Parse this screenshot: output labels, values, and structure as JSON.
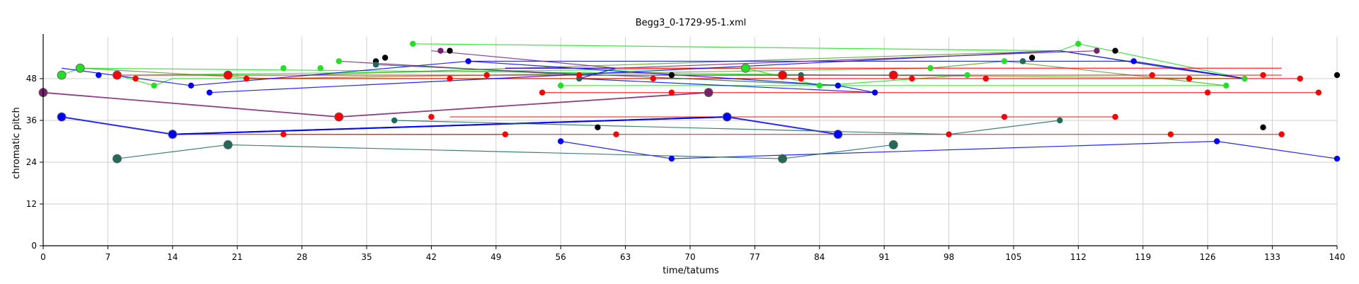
{
  "chart_data": {
    "type": "scatter",
    "title": "Begg3_0-1729-95-1.xml",
    "xlabel": "time/tatums",
    "ylabel": "chromatic pitch",
    "xlim": [
      0,
      140
    ],
    "ylim": [
      0,
      60
    ],
    "x_ticks": [
      0,
      7,
      14,
      21,
      28,
      35,
      42,
      49,
      56,
      63,
      70,
      77,
      84,
      91,
      98,
      105,
      112,
      119,
      126,
      133,
      140
    ],
    "y_ticks": [
      0,
      12,
      24,
      36,
      48
    ],
    "grid": true,
    "colors": {
      "bright_green": "#22e022",
      "olive_green": "#5aa02a",
      "dark_green": "#1f6b5a",
      "red": "#ff0000",
      "blue": "#0000ff",
      "purple": "#7a1f6e",
      "black": "#000000"
    },
    "series": [
      {
        "color": "bright_green",
        "line": false,
        "x": [
          4,
          8,
          12,
          26,
          30,
          32,
          40,
          56,
          76,
          84,
          96,
          100,
          104,
          112,
          128,
          130
        ],
        "y": [
          51,
          49,
          46,
          51,
          51,
          53,
          58,
          46,
          51,
          46,
          51,
          49,
          53,
          58,
          46,
          48
        ]
      },
      {
        "color": "black",
        "line": false,
        "x": [
          36,
          37,
          44,
          60,
          68,
          106,
          107,
          116,
          132,
          140
        ],
        "y": [
          53,
          54,
          56,
          34,
          49,
          53,
          54,
          56,
          34,
          49
        ]
      },
      {
        "color": "dark_green",
        "line": false,
        "x": [
          36,
          38,
          58,
          82,
          106,
          110
        ],
        "y": [
          52,
          36,
          48,
          49,
          53,
          36
        ]
      },
      {
        "color": "purple",
        "line": false,
        "x": [
          43,
          114
        ],
        "y": [
          56,
          56
        ]
      },
      {
        "color": "red",
        "line": false,
        "x": [
          10,
          22,
          26,
          42,
          44,
          48,
          50,
          54,
          58,
          62,
          66,
          68,
          82,
          94,
          98,
          102,
          116,
          120,
          122,
          124,
          126,
          132,
          134,
          136,
          138,
          104
        ],
        "y": [
          48,
          48,
          32,
          37,
          48,
          49,
          32,
          44,
          49,
          32,
          48,
          44,
          48,
          48,
          32,
          48,
          37,
          49,
          32,
          48,
          44,
          49,
          32,
          48,
          44,
          37
        ]
      },
      {
        "color": "blue",
        "line": false,
        "x": [
          6,
          16,
          18,
          46,
          56,
          68,
          86,
          90,
          118,
          127,
          140
        ],
        "y": [
          49,
          46,
          44,
          53,
          30,
          25,
          46,
          44,
          53,
          30,
          25
        ]
      }
    ],
    "lines": [
      {
        "color": "bright_green",
        "width": 1.2,
        "points": [
          [
            2,
            49
          ],
          [
            4,
            51
          ],
          [
            130,
            48
          ]
        ]
      },
      {
        "color": "bright_green",
        "width": 1.2,
        "points": [
          [
            10,
            49
          ],
          [
            76,
            51
          ],
          [
            84,
            46
          ],
          [
            100,
            49
          ]
        ]
      },
      {
        "color": "bright_green",
        "width": 1.2,
        "points": [
          [
            40,
            58
          ],
          [
            110,
            56
          ],
          [
            112,
            58
          ],
          [
            130,
            48
          ]
        ]
      },
      {
        "color": "bright_green",
        "width": 1.2,
        "points": [
          [
            56,
            46
          ],
          [
            128,
            46
          ]
        ]
      },
      {
        "color": "bright_green",
        "width": 1.2,
        "points": [
          [
            8,
            49
          ],
          [
            12,
            46
          ],
          [
            14,
            48
          ],
          [
            58,
            48
          ],
          [
            82,
            48
          ]
        ]
      },
      {
        "color": "olive_green",
        "width": 1.2,
        "points": [
          [
            4,
            51
          ],
          [
            24,
            48
          ],
          [
            96,
            51
          ],
          [
            104,
            53
          ],
          [
            128,
            46
          ]
        ]
      },
      {
        "color": "olive_green",
        "width": 1.2,
        "points": [
          [
            28,
            49
          ],
          [
            110,
            56
          ],
          [
            130,
            48
          ]
        ]
      },
      {
        "color": "red",
        "width": 1.2,
        "points": [
          [
            8,
            49
          ],
          [
            134,
            49
          ]
        ]
      },
      {
        "color": "red",
        "width": 1.2,
        "points": [
          [
            22,
            48
          ],
          [
            136,
            48
          ]
        ]
      },
      {
        "color": "red",
        "width": 1.2,
        "points": [
          [
            50,
            51
          ],
          [
            134,
            51
          ]
        ]
      },
      {
        "color": "red",
        "width": 1.2,
        "points": [
          [
            54,
            44
          ],
          [
            138,
            44
          ]
        ]
      },
      {
        "color": "red",
        "width": 1.2,
        "points": [
          [
            44,
            37
          ],
          [
            116,
            37
          ]
        ]
      },
      {
        "color": "red",
        "width": 1.2,
        "points": [
          [
            26,
            32
          ],
          [
            134,
            32
          ]
        ]
      },
      {
        "color": "red",
        "width": 1.2,
        "points": [
          [
            14,
            32
          ],
          [
            50,
            32
          ]
        ]
      },
      {
        "color": "blue",
        "width": 1.2,
        "points": [
          [
            2,
            51
          ],
          [
            16,
            46
          ],
          [
            46,
            53
          ],
          [
            118,
            53
          ],
          [
            130,
            48
          ]
        ]
      },
      {
        "color": "blue",
        "width": 1.2,
        "points": [
          [
            18,
            44
          ],
          [
            110,
            56
          ],
          [
            122,
            51
          ],
          [
            130,
            48
          ]
        ]
      },
      {
        "color": "blue",
        "width": 1.2,
        "points": [
          [
            46,
            53
          ],
          [
            86,
            46
          ],
          [
            90,
            44
          ],
          [
            58,
            48
          ],
          [
            62,
            51
          ],
          [
            50,
            51
          ]
        ]
      },
      {
        "color": "blue",
        "width": 1.2,
        "points": [
          [
            56,
            30
          ],
          [
            68,
            25
          ],
          [
            127,
            30
          ],
          [
            140,
            25
          ]
        ]
      },
      {
        "color": "blue",
        "width": 2,
        "points": [
          [
            2,
            37
          ],
          [
            14,
            32
          ],
          [
            74,
            37
          ],
          [
            86,
            32
          ]
        ]
      },
      {
        "color": "blue",
        "width": 2,
        "points": [
          [
            14,
            32
          ],
          [
            74,
            37
          ]
        ]
      },
      {
        "color": "purple",
        "width": 1.8,
        "points": [
          [
            0,
            44
          ],
          [
            32,
            37
          ],
          [
            72,
            44
          ]
        ]
      },
      {
        "color": "purple",
        "width": 1.2,
        "points": [
          [
            32,
            53
          ],
          [
            58,
            49
          ],
          [
            100,
            49
          ]
        ]
      },
      {
        "color": "purple",
        "width": 1.2,
        "points": [
          [
            42,
            56
          ],
          [
            62,
            51
          ],
          [
            114,
            56
          ]
        ]
      },
      {
        "color": "dark_green",
        "width": 1.2,
        "points": [
          [
            8,
            25
          ],
          [
            20,
            29
          ],
          [
            80,
            25
          ],
          [
            92,
            29
          ]
        ]
      },
      {
        "color": "dark_green",
        "width": 1.2,
        "points": [
          [
            38,
            36
          ],
          [
            98,
            32
          ],
          [
            110,
            36
          ]
        ]
      },
      {
        "color": "dark_green",
        "width": 1.2,
        "points": [
          [
            36,
            52
          ],
          [
            86,
            46
          ]
        ]
      }
    ],
    "big_markers": [
      {
        "x": 0,
        "y": 44,
        "color": "purple"
      },
      {
        "x": 72,
        "y": 44,
        "color": "purple"
      },
      {
        "x": 32,
        "y": 37,
        "color": "red"
      },
      {
        "x": 2,
        "y": 37,
        "color": "blue"
      },
      {
        "x": 14,
        "y": 32,
        "color": "blue"
      },
      {
        "x": 74,
        "y": 37,
        "color": "blue"
      },
      {
        "x": 86,
        "y": 32,
        "color": "blue"
      },
      {
        "x": 8,
        "y": 25,
        "color": "dark_green"
      },
      {
        "x": 20,
        "y": 29,
        "color": "dark_green"
      },
      {
        "x": 80,
        "y": 25,
        "color": "dark_green"
      },
      {
        "x": 92,
        "y": 29,
        "color": "dark_green"
      },
      {
        "x": 2,
        "y": 49,
        "color": "bright_green"
      },
      {
        "x": 4,
        "y": 51,
        "color": "bright_green"
      },
      {
        "x": 8,
        "y": 49,
        "color": "red"
      },
      {
        "x": 20,
        "y": 49,
        "color": "red"
      },
      {
        "x": 76,
        "y": 51,
        "color": "bright_green"
      },
      {
        "x": 80,
        "y": 49,
        "color": "red"
      },
      {
        "x": 92,
        "y": 49,
        "color": "red"
      }
    ]
  }
}
